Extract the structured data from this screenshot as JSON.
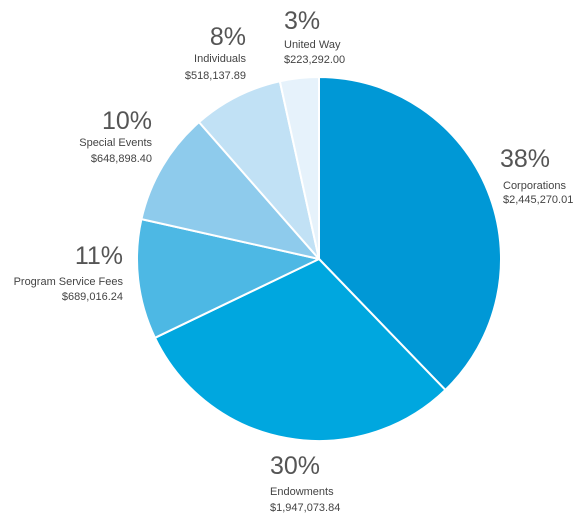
{
  "chart_data": {
    "type": "pie",
    "slices": [
      {
        "name": "Corporations",
        "percent_label": "38%",
        "amount": "$2,445,270.01",
        "value": 2445270.01,
        "color": "#0098d6"
      },
      {
        "name": "Endowments",
        "percent_label": "30%",
        "amount": "$1,947,073.84",
        "value": 1947073.84,
        "color": "#00a7df"
      },
      {
        "name": "Program Service Fees",
        "percent_label": "11%",
        "amount": "$689,016.24",
        "value": 689016.24,
        "color": "#4db8e4"
      },
      {
        "name": "Special Events",
        "percent_label": "10%",
        "amount": "$648,898.40",
        "value": 648898.4,
        "color": "#8ecbec"
      },
      {
        "name": "Individuals",
        "percent_label": "8%",
        "amount": "$518,137.89",
        "value": 518137.89,
        "color": "#c1e1f5"
      },
      {
        "name": "United Way",
        "percent_label": "3%",
        "amount": "$223,292.00",
        "value": 223292.0,
        "color": "#e6f2fb"
      }
    ]
  }
}
